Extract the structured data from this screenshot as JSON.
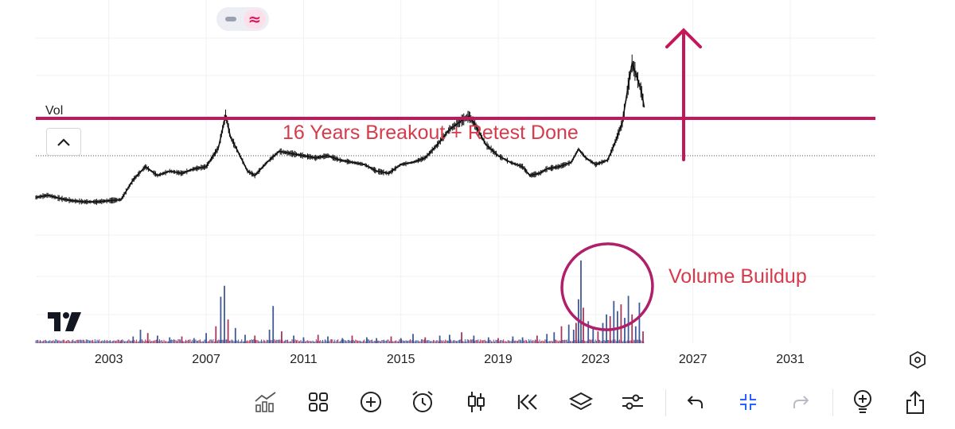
{
  "toggle": {
    "line_icon": "minus-icon",
    "wave_icon": "≈"
  },
  "panel": {
    "vol_label": "Vol",
    "collapse_icon": "chevron-up-icon"
  },
  "annotations": {
    "breakout": "16 Years Breakout + Retest Done",
    "volume": "Volume Buildup"
  },
  "colors": {
    "annotation": "#d63b4c",
    "breakout_line": "#c2185b",
    "volume_up": "#3f5a96",
    "volume_down": "#a8365e",
    "price": "#111111"
  },
  "chart_data": {
    "type": "line",
    "x_axis": {
      "ticks": [
        "2003",
        "2007",
        "2011",
        "2015",
        "2019",
        "2023",
        "2027",
        "2031"
      ],
      "range": [
        2000.0,
        2034.5
      ]
    },
    "price_series": [
      {
        "x": 2000.0,
        "y": 30
      },
      {
        "x": 2000.5,
        "y": 32
      },
      {
        "x": 2001.0,
        "y": 29
      },
      {
        "x": 2001.5,
        "y": 27
      },
      {
        "x": 2002.0,
        "y": 26
      },
      {
        "x": 2002.5,
        "y": 26
      },
      {
        "x": 2003.0,
        "y": 27
      },
      {
        "x": 2003.5,
        "y": 28
      },
      {
        "x": 2004.0,
        "y": 46
      },
      {
        "x": 2004.5,
        "y": 58
      },
      {
        "x": 2005.0,
        "y": 50
      },
      {
        "x": 2005.5,
        "y": 54
      },
      {
        "x": 2006.0,
        "y": 52
      },
      {
        "x": 2006.5,
        "y": 56
      },
      {
        "x": 2007.0,
        "y": 58
      },
      {
        "x": 2007.5,
        "y": 75
      },
      {
        "x": 2007.8,
        "y": 105
      },
      {
        "x": 2008.0,
        "y": 85
      },
      {
        "x": 2008.3,
        "y": 72
      },
      {
        "x": 2008.7,
        "y": 54
      },
      {
        "x": 2009.0,
        "y": 50
      },
      {
        "x": 2009.5,
        "y": 62
      },
      {
        "x": 2010.0,
        "y": 72
      },
      {
        "x": 2010.5,
        "y": 70
      },
      {
        "x": 2011.0,
        "y": 68
      },
      {
        "x": 2011.5,
        "y": 66
      },
      {
        "x": 2012.0,
        "y": 68
      },
      {
        "x": 2012.5,
        "y": 64
      },
      {
        "x": 2013.0,
        "y": 62
      },
      {
        "x": 2013.5,
        "y": 60
      },
      {
        "x": 2014.0,
        "y": 54
      },
      {
        "x": 2014.5,
        "y": 52
      },
      {
        "x": 2015.0,
        "y": 60
      },
      {
        "x": 2015.5,
        "y": 62
      },
      {
        "x": 2016.0,
        "y": 66
      },
      {
        "x": 2016.5,
        "y": 78
      },
      {
        "x": 2017.0,
        "y": 92
      },
      {
        "x": 2017.5,
        "y": 100
      },
      {
        "x": 2017.8,
        "y": 104
      },
      {
        "x": 2018.0,
        "y": 98
      },
      {
        "x": 2018.5,
        "y": 78
      },
      {
        "x": 2019.0,
        "y": 68
      },
      {
        "x": 2019.5,
        "y": 62
      },
      {
        "x": 2020.0,
        "y": 58
      },
      {
        "x": 2020.3,
        "y": 50
      },
      {
        "x": 2020.7,
        "y": 52
      },
      {
        "x": 2021.0,
        "y": 56
      },
      {
        "x": 2021.5,
        "y": 58
      },
      {
        "x": 2022.0,
        "y": 62
      },
      {
        "x": 2022.3,
        "y": 74
      },
      {
        "x": 2022.6,
        "y": 66
      },
      {
        "x": 2023.0,
        "y": 60
      },
      {
        "x": 2023.5,
        "y": 64
      },
      {
        "x": 2023.8,
        "y": 80
      },
      {
        "x": 2024.1,
        "y": 98
      },
      {
        "x": 2024.3,
        "y": 126
      },
      {
        "x": 2024.5,
        "y": 152
      },
      {
        "x": 2024.7,
        "y": 140
      },
      {
        "x": 2024.9,
        "y": 125
      },
      {
        "x": 2025.0,
        "y": 112
      }
    ],
    "y_range": [
      0,
      170
    ],
    "breakout_level": 102,
    "volume_series": [
      {
        "x": 2003.5,
        "v": 3
      },
      {
        "x": 2004.0,
        "v": 8
      },
      {
        "x": 2004.3,
        "v": 16
      },
      {
        "x": 2004.6,
        "v": 12
      },
      {
        "x": 2005.0,
        "v": 9
      },
      {
        "x": 2005.5,
        "v": 7
      },
      {
        "x": 2006.0,
        "v": 8
      },
      {
        "x": 2006.5,
        "v": 6
      },
      {
        "x": 2007.0,
        "v": 12
      },
      {
        "x": 2007.4,
        "v": 20
      },
      {
        "x": 2007.6,
        "v": 55
      },
      {
        "x": 2007.75,
        "v": 68
      },
      {
        "x": 2007.9,
        "v": 28
      },
      {
        "x": 2008.2,
        "v": 18
      },
      {
        "x": 2008.6,
        "v": 10
      },
      {
        "x": 2009.0,
        "v": 9
      },
      {
        "x": 2009.6,
        "v": 16
      },
      {
        "x": 2009.75,
        "v": 44
      },
      {
        "x": 2010.1,
        "v": 14
      },
      {
        "x": 2010.6,
        "v": 9
      },
      {
        "x": 2011.0,
        "v": 7
      },
      {
        "x": 2011.6,
        "v": 10
      },
      {
        "x": 2012.0,
        "v": 8
      },
      {
        "x": 2012.6,
        "v": 6
      },
      {
        "x": 2013.0,
        "v": 9
      },
      {
        "x": 2013.6,
        "v": 7
      },
      {
        "x": 2014.0,
        "v": 6
      },
      {
        "x": 2014.6,
        "v": 8
      },
      {
        "x": 2015.0,
        "v": 6
      },
      {
        "x": 2015.5,
        "v": 11
      },
      {
        "x": 2016.0,
        "v": 7
      },
      {
        "x": 2016.6,
        "v": 9
      },
      {
        "x": 2017.0,
        "v": 10
      },
      {
        "x": 2017.5,
        "v": 13
      },
      {
        "x": 2018.0,
        "v": 9
      },
      {
        "x": 2018.6,
        "v": 7
      },
      {
        "x": 2019.0,
        "v": 6
      },
      {
        "x": 2019.6,
        "v": 8
      },
      {
        "x": 2020.0,
        "v": 7
      },
      {
        "x": 2020.6,
        "v": 9
      },
      {
        "x": 2021.0,
        "v": 11
      },
      {
        "x": 2021.3,
        "v": 13
      },
      {
        "x": 2021.6,
        "v": 20
      },
      {
        "x": 2021.9,
        "v": 22
      },
      {
        "x": 2022.1,
        "v": 16
      },
      {
        "x": 2022.2,
        "v": 24
      },
      {
        "x": 2022.3,
        "v": 52
      },
      {
        "x": 2022.4,
        "v": 98
      },
      {
        "x": 2022.5,
        "v": 42
      },
      {
        "x": 2022.7,
        "v": 26
      },
      {
        "x": 2022.9,
        "v": 18
      },
      {
        "x": 2023.1,
        "v": 14
      },
      {
        "x": 2023.3,
        "v": 24
      },
      {
        "x": 2023.45,
        "v": 34
      },
      {
        "x": 2023.6,
        "v": 32
      },
      {
        "x": 2023.75,
        "v": 50
      },
      {
        "x": 2023.9,
        "v": 38
      },
      {
        "x": 2024.05,
        "v": 46
      },
      {
        "x": 2024.2,
        "v": 30
      },
      {
        "x": 2024.35,
        "v": 56
      },
      {
        "x": 2024.5,
        "v": 34
      },
      {
        "x": 2024.65,
        "v": 20
      },
      {
        "x": 2024.8,
        "v": 48
      },
      {
        "x": 2024.95,
        "v": 14
      }
    ],
    "volume_range": [
      0,
      110
    ]
  },
  "toolbar": {
    "buttons": [
      {
        "name": "chart-type-icon",
        "glyph": "chart"
      },
      {
        "name": "layout-grid-icon",
        "glyph": "grid"
      },
      {
        "name": "add-icon",
        "glyph": "plus"
      },
      {
        "name": "alarm-icon",
        "glyph": "alarm"
      },
      {
        "name": "candles-icon",
        "glyph": "candles"
      },
      {
        "name": "replay-icon",
        "glyph": "rewind"
      },
      {
        "name": "layers-icon",
        "glyph": "layers"
      },
      {
        "name": "settings-sliders-icon",
        "glyph": "sliders"
      },
      {
        "name": "undo-icon",
        "glyph": "undo"
      },
      {
        "name": "collapse-fullscreen-icon",
        "glyph": "collapse"
      },
      {
        "name": "redo-icon",
        "glyph": "redo"
      },
      {
        "name": "idea-icon",
        "glyph": "idea"
      },
      {
        "name": "share-icon",
        "glyph": "share"
      }
    ]
  }
}
